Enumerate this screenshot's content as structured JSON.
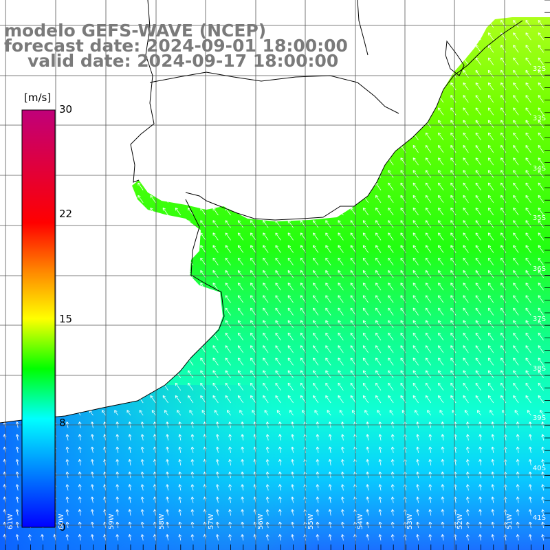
{
  "title": {
    "line1": "modelo GEFS-WAVE (NCEP)",
    "line2": "forecast date: 2024-09-01 18:00:00",
    "line3": "valid date: 2024-09-17 18:00:00"
  },
  "colorbar": {
    "unit": "[m/s]",
    "min": 0,
    "max": 30,
    "ticks": [
      "30",
      "22",
      "15",
      "8",
      "0"
    ],
    "colors": [
      "#c0007a",
      "#ff0000",
      "#ff8000",
      "#ffff00",
      "#00ff00",
      "#00ffff",
      "#0000ff"
    ]
  },
  "map": {
    "lat_labels": [
      "32S",
      "33S",
      "34S",
      "35S",
      "36S",
      "37S",
      "38S",
      "39S",
      "40S",
      "41S"
    ],
    "lon_labels": [
      "61W",
      "60W",
      "59W",
      "58W",
      "57W",
      "56W",
      "55W",
      "54W",
      "53W",
      "52W",
      "51W"
    ],
    "land_color": "#ffffff",
    "wind_direction": "from southeast (arrows point northwest)",
    "speed_regions": [
      {
        "area": "north / Uruguay coast",
        "speed_ms": 14
      },
      {
        "area": "central shelf 35S-37S",
        "speed_ms": 12
      },
      {
        "area": "south near 39S-41S",
        "speed_ms": 9
      },
      {
        "area": "southwest Bahia Blanca",
        "speed_ms": 7
      }
    ]
  }
}
